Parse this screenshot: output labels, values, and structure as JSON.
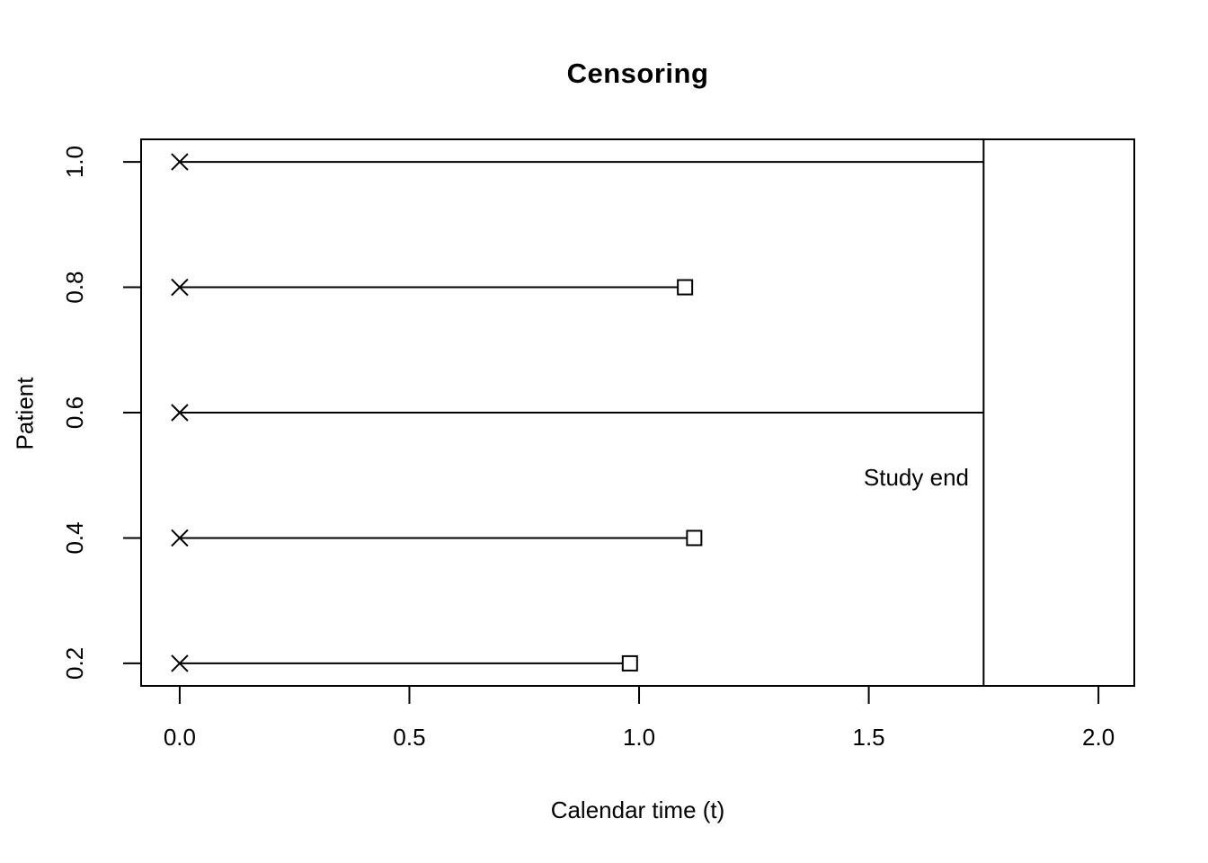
{
  "page": {
    "background_color": "#ffffff",
    "foreground_color": "#000000"
  },
  "chart_data": {
    "type": "line",
    "title": "Censoring",
    "xlabel": "Calendar time (t)",
    "ylabel": "Patient",
    "xlim": [
      -0.084,
      2.078
    ],
    "ylim": [
      0.164,
      1.036
    ],
    "x_ticks": [
      0.0,
      0.5,
      1.0,
      1.5,
      2.0
    ],
    "x_tick_labels": [
      "0.0",
      "0.5",
      "1.0",
      "1.5",
      "2.0"
    ],
    "y_ticks": [
      0.2,
      0.4,
      0.6,
      0.8,
      1.0
    ],
    "y_tick_labels": [
      "0.2",
      "0.4",
      "0.6",
      "0.8",
      "1.0"
    ],
    "grid": false,
    "frame": true,
    "legend": null,
    "colors": {
      "stroke": "#000000",
      "background": "#ffffff"
    },
    "study_end": {
      "x": 1.75,
      "label": "Study end",
      "label_y": 0.5,
      "label_align": "right"
    },
    "series": [
      {
        "name": "patient-y1.0",
        "y": 1.0,
        "x_start": 0.0,
        "x_end": 1.75,
        "start_marker": "cross",
        "end_marker": "none"
      },
      {
        "name": "patient-y0.8",
        "y": 0.8,
        "x_start": 0.0,
        "x_end": 1.1,
        "start_marker": "cross",
        "end_marker": "open-square"
      },
      {
        "name": "patient-y0.6",
        "y": 0.6,
        "x_start": 0.0,
        "x_end": 1.75,
        "start_marker": "cross",
        "end_marker": "none"
      },
      {
        "name": "patient-y0.4",
        "y": 0.4,
        "x_start": 0.0,
        "x_end": 1.12,
        "start_marker": "cross",
        "end_marker": "open-square"
      },
      {
        "name": "patient-y0.2",
        "y": 0.2,
        "x_start": 0.0,
        "x_end": 0.98,
        "start_marker": "cross",
        "end_marker": "open-square"
      }
    ]
  }
}
